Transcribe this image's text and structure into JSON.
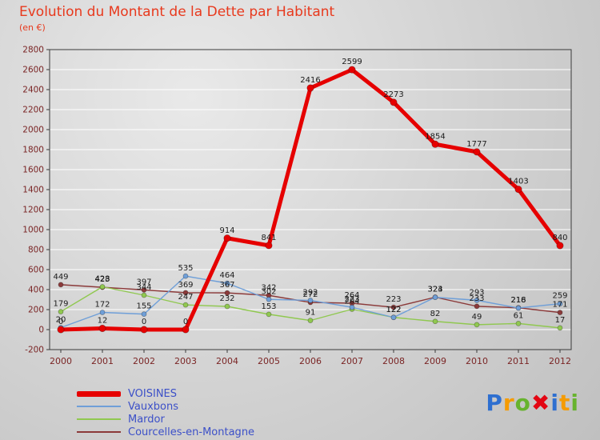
{
  "title": "Evolution du Montant de la Dette par Habitant",
  "subtitle": "(en €)",
  "colors": {
    "title": "#e8391d",
    "axis_text": "#7a2525",
    "grid": "#ffffff",
    "plot_border": "#3a3a3a",
    "data_label": "#1c1c1c",
    "legend_text": "#3c50c8"
  },
  "chart_data": {
    "type": "line",
    "title": "Evolution du Montant de la Dette par Habitant",
    "ylabel": "(en €)",
    "x": [
      2000,
      2001,
      2002,
      2003,
      2004,
      2005,
      2006,
      2007,
      2008,
      2009,
      2010,
      2011,
      2012
    ],
    "series": [
      {
        "name": "VOISINES",
        "color": "#e60000",
        "thick": true,
        "values": [
          0,
          12,
          0,
          0,
          914,
          841,
          2416,
          2599,
          2273,
          1854,
          1777,
          1403,
          840
        ]
      },
      {
        "name": "Vauxbons",
        "color": "#6f9fd8",
        "thick": false,
        "values": [
          20,
          172,
          155,
          535,
          464,
          302,
          292,
          223,
          122,
          323,
          293,
          216,
          259
        ]
      },
      {
        "name": "Mardor",
        "color": "#90c850",
        "thick": false,
        "values": [
          179,
          428,
          344,
          247,
          232,
          153,
          91,
          204,
          122,
          82,
          49,
          61,
          17
        ]
      },
      {
        "name": "Courcelles-en-Montagne",
        "color": "#8b3a3a",
        "thick": false,
        "values": [
          449,
          423,
          397,
          369,
          367,
          342,
          272,
          264,
          223,
          324,
          233,
          218,
          171
        ]
      }
    ],
    "ylim": [
      -200,
      2800
    ],
    "yticks": [
      -200,
      0,
      200,
      400,
      600,
      800,
      1000,
      1200,
      1400,
      1600,
      1800,
      2000,
      2200,
      2400,
      2600,
      2800
    ],
    "grid": true,
    "point_labels": true,
    "legend_position": "bottom-left"
  },
  "legend": {
    "items": [
      {
        "label": "VOISINES"
      },
      {
        "label": "Vauxbons"
      },
      {
        "label": "Mardor"
      },
      {
        "label": "Courcelles-en-Montagne"
      }
    ]
  },
  "logo": {
    "text": "Proxiti",
    "letters": [
      {
        "ch": "P",
        "color": "#2e6fd0"
      },
      {
        "ch": "r",
        "color": "#f59b00"
      },
      {
        "ch": "o",
        "color": "#67b32e"
      },
      {
        "ch": "✖",
        "color": "#e30613"
      },
      {
        "ch": "i",
        "color": "#2e6fd0"
      },
      {
        "ch": "t",
        "color": "#f59b00"
      },
      {
        "ch": "i",
        "color": "#67b32e"
      }
    ]
  }
}
